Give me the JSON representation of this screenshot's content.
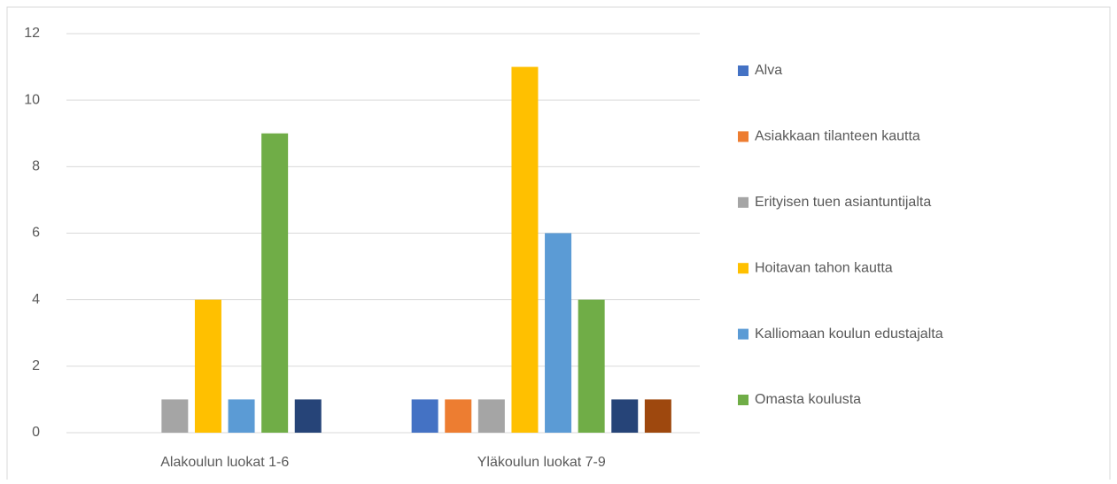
{
  "chart_data": {
    "type": "bar",
    "categories": [
      "Alakoulun luokat 1-6",
      "Yläkoulun luokat 7-9"
    ],
    "series": [
      {
        "name": "Alva",
        "color": "#4472c4",
        "values": [
          0,
          1
        ]
      },
      {
        "name": "Asiakkaan tilanteen kautta",
        "color": "#ed7d31",
        "values": [
          0,
          1
        ]
      },
      {
        "name": "Erityisen tuen asiantuntijalta",
        "color": "#a5a5a5",
        "values": [
          1,
          1
        ]
      },
      {
        "name": "Hoitavan tahon kautta",
        "color": "#ffc000",
        "values": [
          4,
          11
        ]
      },
      {
        "name": "Kalliomaan koulun edustajalta",
        "color": "#5b9bd5",
        "values": [
          1,
          6
        ]
      },
      {
        "name": "Omasta koulusta",
        "color": "#70ad47",
        "values": [
          9,
          4
        ]
      },
      {
        "name": null,
        "color": "#264478",
        "values": [
          1,
          1
        ]
      },
      {
        "name": null,
        "color": "#9e480e",
        "values": [
          0,
          1
        ]
      }
    ],
    "ylim": [
      0,
      12
    ],
    "yticks": [
      0,
      2,
      4,
      6,
      8,
      10,
      12
    ],
    "grid": true,
    "legend": "right"
  }
}
